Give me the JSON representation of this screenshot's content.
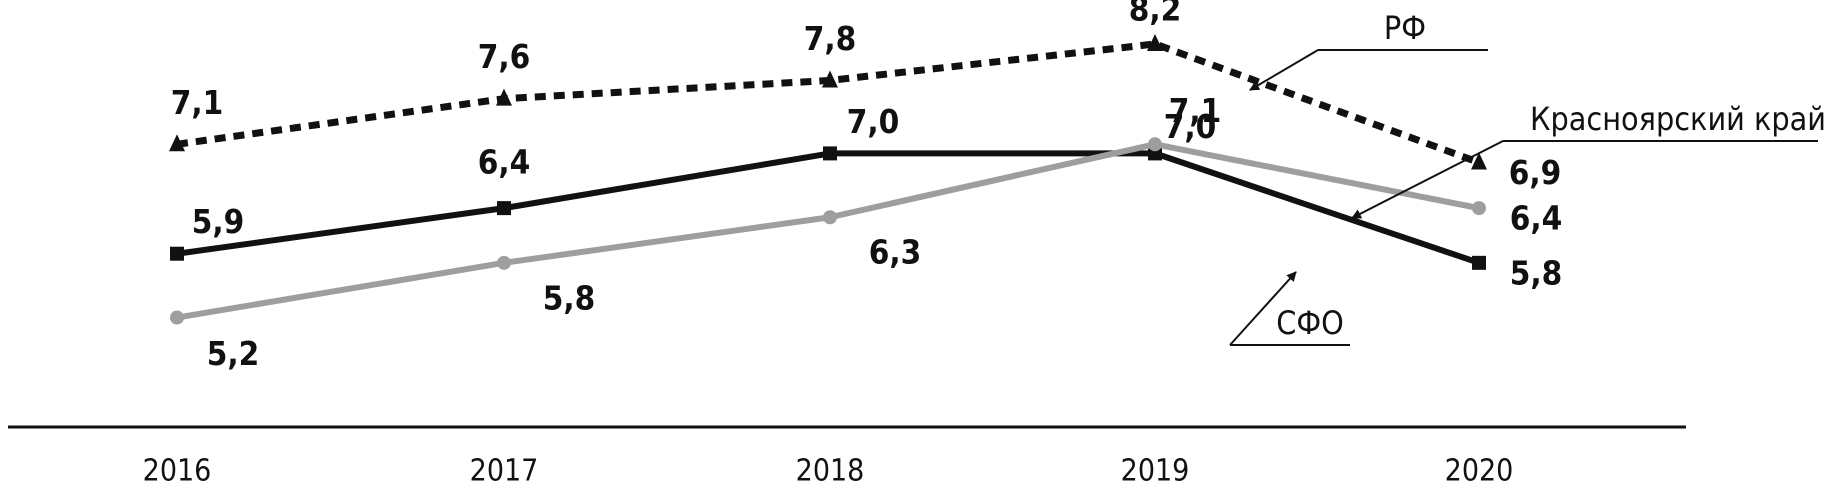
{
  "chart_data": {
    "type": "line",
    "categories": [
      "2016",
      "2017",
      "2018",
      "2019",
      "2020"
    ],
    "series": [
      {
        "name": "РФ",
        "values": [
          7.1,
          7.6,
          7.8,
          8.2,
          6.9
        ],
        "labels": [
          "7,1",
          "7,6",
          "7,8",
          "8,2",
          "6,9"
        ],
        "color": "#111111",
        "style": "dotted",
        "marker": "triangle"
      },
      {
        "name": "СФО",
        "values": [
          5.9,
          6.4,
          7.0,
          7.0,
          5.8
        ],
        "labels": [
          "5,9",
          "6,4",
          "7,0",
          "7,0",
          "5,8"
        ],
        "color": "#111111",
        "style": "solid",
        "marker": "square"
      },
      {
        "name": "Красноярский край",
        "values": [
          5.2,
          5.8,
          6.3,
          7.1,
          6.4
        ],
        "labels": [
          "5,2",
          "5,8",
          "6,3",
          "7,1",
          "6,4"
        ],
        "color": "#9e9e9e",
        "style": "solid",
        "marker": "circle"
      }
    ],
    "title": "",
    "xlabel": "",
    "ylabel": "",
    "ylim": [
      4.0,
      8.5
    ],
    "grid": false,
    "legend": "inline-callouts"
  }
}
